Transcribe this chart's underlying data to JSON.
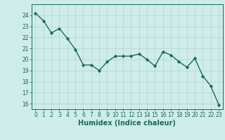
{
  "x": [
    0,
    1,
    2,
    3,
    4,
    5,
    6,
    7,
    8,
    9,
    10,
    11,
    12,
    13,
    14,
    15,
    16,
    17,
    18,
    19,
    20,
    21,
    22,
    23
  ],
  "y": [
    24.2,
    23.5,
    22.4,
    22.8,
    21.9,
    20.9,
    19.5,
    19.5,
    19.0,
    19.8,
    20.3,
    20.3,
    20.3,
    20.5,
    20.0,
    19.4,
    20.7,
    20.4,
    19.8,
    19.3,
    20.1,
    18.5,
    17.6,
    15.9
  ],
  "line_color": "#1a6b5a",
  "marker": "D",
  "marker_size": 2.2,
  "bg_color": "#ceecea",
  "grid_color": "#b0d4d0",
  "xlabel": "Humidex (Indice chaleur)",
  "ylim": [
    15.5,
    25.0
  ],
  "xlim": [
    -0.5,
    23.5
  ],
  "yticks": [
    16,
    17,
    18,
    19,
    20,
    21,
    22,
    23,
    24
  ],
  "xticks": [
    0,
    1,
    2,
    3,
    4,
    5,
    6,
    7,
    8,
    9,
    10,
    11,
    12,
    13,
    14,
    15,
    16,
    17,
    18,
    19,
    20,
    21,
    22,
    23
  ],
  "axis_color": "#1a6b5a",
  "tick_color": "#1a6b5a",
  "label_color": "#1a6b5a",
  "linewidth": 1.0,
  "tick_fontsize": 5.5,
  "xlabel_fontsize": 7.0
}
